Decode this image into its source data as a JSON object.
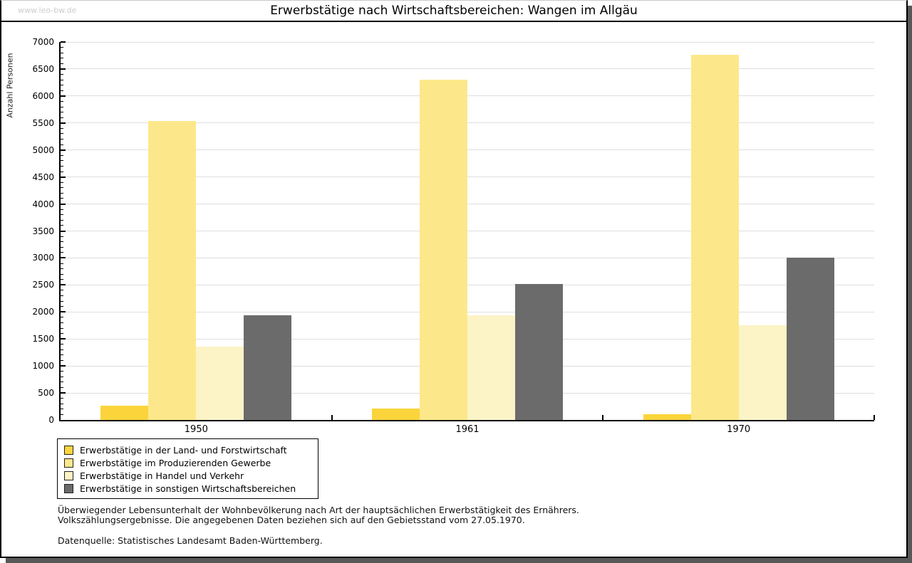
{
  "watermark": "www.leo-bw.de",
  "title": "Erwerbstätige nach Wirtschaftsbereichen: Wangen im Allgäu",
  "chart_data": {
    "type": "bar",
    "title": "Erwerbstätige nach Wirtschaftsbereichen: Wangen im Allgäu",
    "xlabel": "",
    "ylabel": "Anzahl Personen",
    "ylim": [
      0,
      7000
    ],
    "ytick_step": 500,
    "yminor_step": 100,
    "grid": true,
    "legend_position": "bottom-left",
    "categories": [
      "1950",
      "1961",
      "1970"
    ],
    "series": [
      {
        "name": "Erwerbstätige in der Land- und Forstwirtschaft",
        "color": "#FBD43B",
        "values": [
          270,
          210,
          110
        ]
      },
      {
        "name": "Erwerbstätige im Produzierenden Gewerbe",
        "color": "#FCE88B",
        "values": [
          5540,
          6300,
          6760
        ]
      },
      {
        "name": "Erwerbstätige in Handel und Verkehr",
        "color": "#FCF3C6",
        "values": [
          1360,
          1940,
          1760
        ]
      },
      {
        "name": "Erwerbstätige in sonstigen Wirtschaftsbereichen",
        "color": "#6B6B6B",
        "values": [
          1940,
          2520,
          3000
        ]
      }
    ]
  },
  "footnotes": {
    "line1": "Überwiegender Lebensunterhalt der Wohnbevölkerung nach Art der hauptsächlichen Erwerbstätigkeit des Ernährers.",
    "line2": "Volkszählungsergebnisse. Die angegebenen Daten beziehen sich auf den Gebietsstand vom 27.05.1970.",
    "source": "Datenquelle: Statistisches Landesamt Baden-Württemberg."
  }
}
